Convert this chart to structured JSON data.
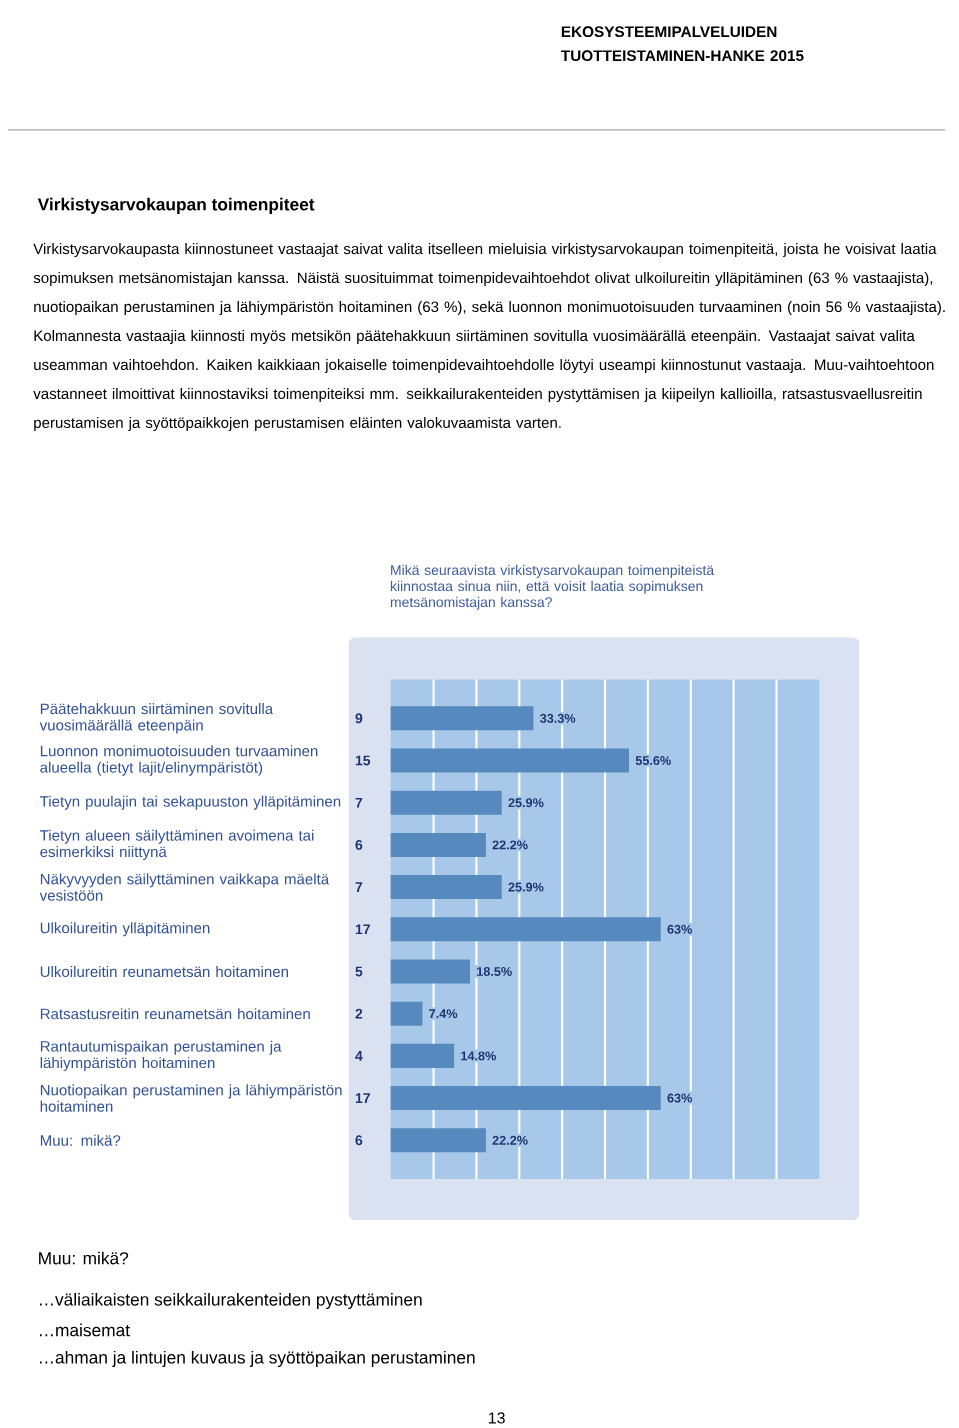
{
  "chart_data": {
    "type": "bar",
    "orientation": "horizontal",
    "title": "Virkistysarvokaupan toimenpiteet",
    "subtitle": "Mikä seuraavista virkistysarvokaupan toimenpiteistä kiinnostaa sinua niin, että voisit laatia sopimuksen metsänomistajan kanssa?",
    "categories": [
      "Päätehakkuun siirtäminen sovitulla vuosimäärällä eteenpäin",
      "Luonnon monimuotoisuuden turvaaminen alueella (tietyt lajit/elinympäristöt)",
      "Tietyn puulajin tai sekapuuston ylläpitäminen",
      "Tietyn alueen säilyttäminen avoimena tai esimerkiksi niittynä",
      "Näkyvyyden säilyttäminen vaikkapa mäeltä vesistöön",
      "Ulkoilureitin ylläpitäminen",
      "Ulkoilureitin reunametsän hoitaminen",
      "Ratsastusreitin reunametsän hoitaminen",
      "Rantautumispaikan perustaminen ja lähiympäristön hoitaminen",
      "Nuotiopaikan perustaminen ja lähiympäristön hoitaminen",
      "Muu: mikä?"
    ],
    "values": [
      33.3,
      55.6,
      25.9,
      22.2,
      25.9,
      63,
      18.5,
      7.4,
      14.8,
      63,
      22.2
    ],
    "value_labels": [
      "33.3%",
      "55.6%",
      "25.9%",
      "22.2%",
      "25.9%",
      "63%",
      "18.5%",
      "7.4%",
      "14.8%",
      "63%",
      "22.2%"
    ],
    "color": "#5689bd",
    "xlim": [
      0,
      100
    ],
    "xticks": [
      {
        "value": 10,
        "label": null
      },
      {
        "value": 20,
        "label": null
      },
      {
        "value": 30,
        "label": null
      },
      {
        "value": 40,
        "label": null
      },
      {
        "value": 50,
        "label": null
      },
      {
        "value": 60,
        "label": null
      },
      {
        "value": 70,
        "label": null
      },
      {
        "value": 80,
        "label": null
      },
      {
        "value": 90,
        "label": null
      }
    ],
    "grid": "x",
    "tick_labels": "y",
    "annotations": [
      "EKOSYSTEEMIPALVELUIDEN TUOTTEISTAMINEN-HANKE 2015",
      "Virkistysarvokaupasta kiinnostuneet vastaajat saivat valita itselleen mieluisia virkistysarvokaupan toimenpiteitä, joista he voisivat laatia sopimuksen metsänomistajan kanssa. Näistä suosituimmat toimenpidevaihtoehdot olivat ulkoilureitin ylläpitäminen (63 % vastaajista), nuotiopaikan perustaminen ja lähiympäristön hoitaminen (63 %), sekä luonnon monimuotoisuuden turvaaminen (noin 56 % vastaajista). Kolmannesta vastaajia kiinnosti myös metsikön päätehakkuun siirtäminen sovitulla vuosimäärällä eteenpäin. Vastaajat saivat valita useamman vaihtoehdon. Kaiken kaikkiaan jokaiselle toimenpidevaihtoehdolle löytyi useampi kiinnostunut vastaaja. Muu-vaihtoehtoon vastanneet ilmoittivat kiinnostaviksi toimenpiteiksi mm. seikkailurakenteiden pystyttämisen ja kiipeilyn kallioilla, ratsastusvaellusreitin perustamisen ja syöttöpaikkojen perustamisen eläinten valokuvaamista varten.",
      "Muu: mikä?",
      "…väliaikaisten seikkailurakenteiden pystyttäminen",
      "…maisemat",
      "…ahman ja lintujen kuvaus ja syöttöpaikan perustaminen",
      "13",
      "9",
      "15",
      "7",
      "6",
      "7",
      "17",
      "5",
      "2",
      "4",
      "17",
      "6"
    ]
  }
}
